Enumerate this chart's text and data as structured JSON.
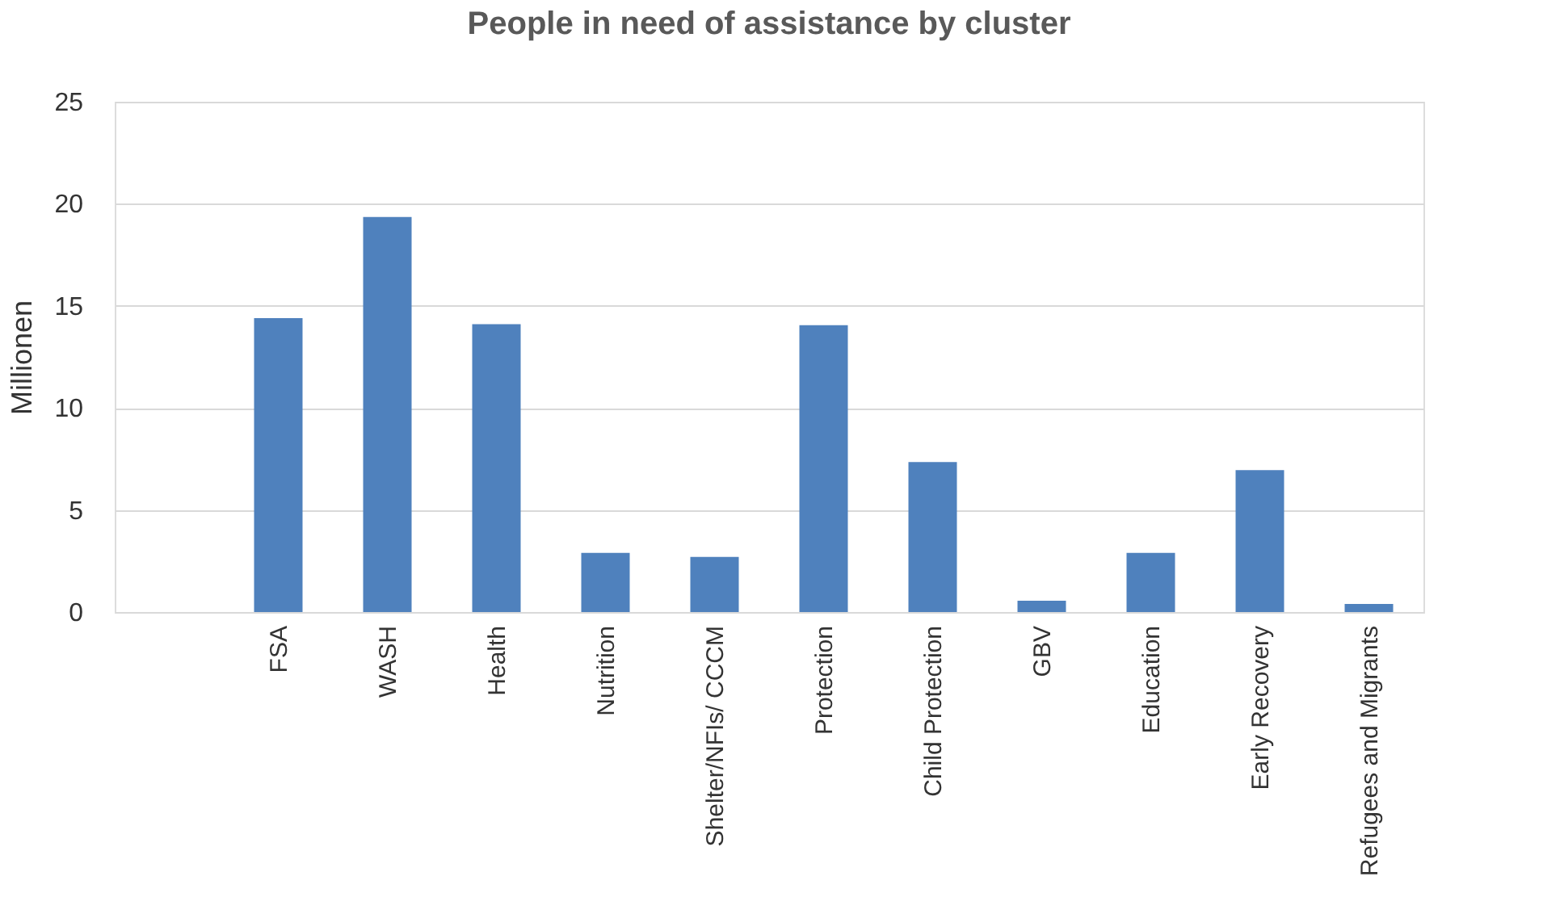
{
  "chart_data": {
    "type": "bar",
    "title": "People in need of assistance by cluster",
    "ylabel": "Millionen",
    "categories": [
      null,
      "FSA",
      "WASH",
      "Health",
      "Nutrition",
      "Shelter/NFIs/\nCCCM",
      "Protection",
      "Child\nProtection",
      "GBV",
      "Education",
      "Early\nRecovery",
      "Refugees and\nMigrants"
    ],
    "values": [
      null,
      14.4,
      19.35,
      14.1,
      2.9,
      2.7,
      14.05,
      7.35,
      0.55,
      2.9,
      6.95,
      0.4
    ],
    "color": "#4f81bd",
    "ylim": [
      0,
      25
    ],
    "yticks": [
      0,
      5,
      10,
      15,
      20,
      25
    ],
    "grid": "y"
  }
}
